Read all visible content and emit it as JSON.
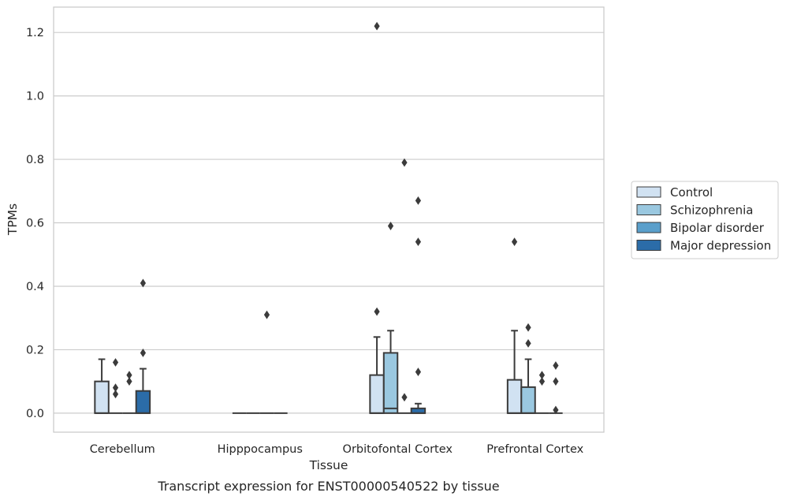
{
  "caption": "Transcript expression for ENST00000540522 by tissue",
  "chart_data": {
    "type": "box",
    "xlabel": "Tissue",
    "ylabel": "TPMs",
    "ylim": [
      -0.06,
      1.28
    ],
    "yticks": [
      0.0,
      0.2,
      0.4,
      0.6,
      0.8,
      1.0,
      1.2
    ],
    "ytick_labels": [
      "0.0",
      "0.2",
      "0.4",
      "0.6",
      "0.8",
      "1.0",
      "1.2"
    ],
    "grid": "horizontal",
    "legend_position": "right",
    "categories": [
      "Cerebellum",
      "Hipppocampus",
      "Orbitofontal Cortex",
      "Prefrontal Cortex"
    ],
    "series": [
      {
        "name": "Control",
        "color": "#d1e2f2",
        "boxes": [
          {
            "q1": 0.0,
            "median": 0.0,
            "q3": 0.1,
            "whisker_low": 0.0,
            "whisker_high": 0.17,
            "outliers": []
          },
          {
            "q1": 0.0,
            "median": 0.0,
            "q3": 0.0,
            "whisker_low": 0.0,
            "whisker_high": 0.0,
            "outliers": []
          },
          {
            "q1": 0.0,
            "median": 0.0,
            "q3": 0.12,
            "whisker_low": 0.0,
            "whisker_high": 0.24,
            "outliers": [
              0.32,
              1.22
            ]
          },
          {
            "q1": 0.0,
            "median": 0.0,
            "q3": 0.105,
            "whisker_low": 0.0,
            "whisker_high": 0.26,
            "outliers": [
              0.54
            ]
          }
        ]
      },
      {
        "name": "Schizophrenia",
        "color": "#9ac8e0",
        "boxes": [
          {
            "q1": 0.0,
            "median": 0.0,
            "q3": 0.0,
            "whisker_low": 0.0,
            "whisker_high": 0.0,
            "outliers": [
              0.06,
              0.08,
              0.16
            ]
          },
          {
            "q1": 0.0,
            "median": 0.0,
            "q3": 0.0,
            "whisker_low": 0.0,
            "whisker_high": 0.0,
            "outliers": []
          },
          {
            "q1": 0.0,
            "median": 0.015,
            "q3": 0.19,
            "whisker_low": 0.0,
            "whisker_high": 0.26,
            "outliers": [
              0.59
            ]
          },
          {
            "q1": 0.0,
            "median": 0.0,
            "q3": 0.082,
            "whisker_low": 0.0,
            "whisker_high": 0.17,
            "outliers": [
              0.22,
              0.27
            ]
          }
        ]
      },
      {
        "name": "Bipolar disorder",
        "color": "#5a9fcb",
        "boxes": [
          {
            "q1": 0.0,
            "median": 0.0,
            "q3": 0.0,
            "whisker_low": 0.0,
            "whisker_high": 0.0,
            "outliers": [
              0.1,
              0.12
            ]
          },
          {
            "q1": 0.0,
            "median": 0.0,
            "q3": 0.0,
            "whisker_low": 0.0,
            "whisker_high": 0.0,
            "outliers": [
              0.31
            ]
          },
          {
            "q1": 0.0,
            "median": 0.0,
            "q3": 0.0,
            "whisker_low": 0.0,
            "whisker_high": 0.0,
            "outliers": [
              0.05,
              0.79
            ]
          },
          {
            "q1": 0.0,
            "median": 0.0,
            "q3": 0.0,
            "whisker_low": 0.0,
            "whisker_high": 0.0,
            "outliers": [
              0.1,
              0.12
            ]
          }
        ]
      },
      {
        "name": "Major depression",
        "color": "#2b6ca8",
        "boxes": [
          {
            "q1": 0.0,
            "median": 0.0,
            "q3": 0.07,
            "whisker_low": 0.0,
            "whisker_high": 0.14,
            "outliers": [
              0.19,
              0.41
            ]
          },
          {
            "q1": 0.0,
            "median": 0.0,
            "q3": 0.0,
            "whisker_low": 0.0,
            "whisker_high": 0.0,
            "outliers": []
          },
          {
            "q1": 0.0,
            "median": 0.0,
            "q3": 0.015,
            "whisker_low": 0.0,
            "whisker_high": 0.03,
            "outliers": [
              0.13,
              0.54,
              0.67
            ]
          },
          {
            "q1": 0.0,
            "median": 0.0,
            "q3": 0.0,
            "whisker_low": 0.0,
            "whisker_high": 0.0,
            "outliers": [
              0.01,
              0.1,
              0.15
            ]
          }
        ]
      }
    ]
  }
}
